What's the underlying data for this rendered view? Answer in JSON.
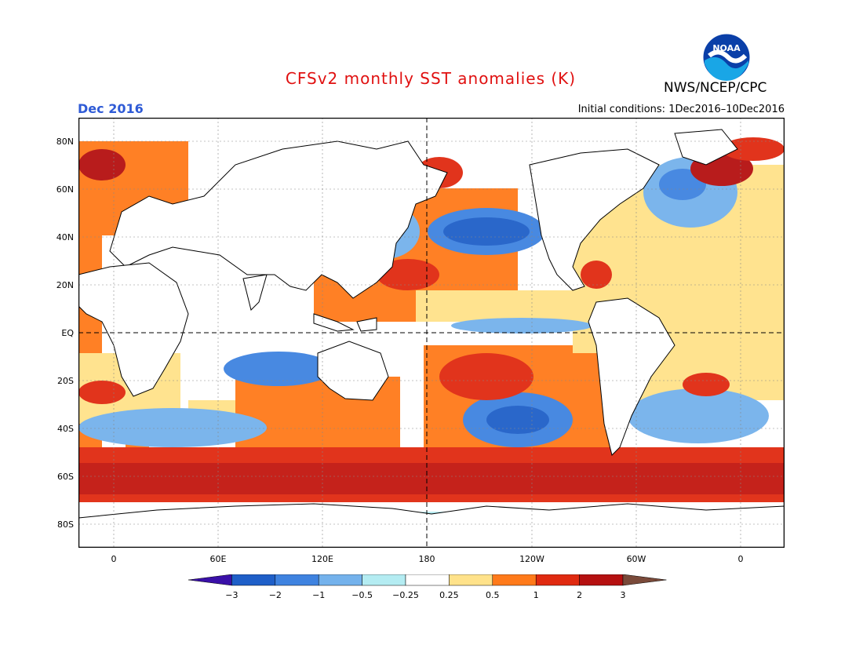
{
  "header": {
    "title": "CFSv2 monthly SST anomalies (K)",
    "agency": "NWS/NCEP/CPC",
    "logo_text": "NOAA",
    "date": "Dec 2016",
    "initial_conditions": "Initial conditions: 1Dec2016–10Dec2016"
  },
  "map": {
    "lat_labels": [
      "80N",
      "60N",
      "40N",
      "20N",
      "EQ",
      "20S",
      "40S",
      "60S",
      "80S"
    ],
    "lon_labels": [
      "0",
      "60E",
      "120E",
      "180",
      "120W",
      "60W",
      "0"
    ],
    "reference_lines": [
      "EQ",
      "180"
    ]
  },
  "legend": {
    "tick_labels": [
      "−3",
      "−2",
      "−1",
      "−0.5",
      "−0.25",
      "0.25",
      "0.5",
      "1",
      "2",
      "3"
    ],
    "colors": [
      "#3a10a8",
      "#1f5fc8",
      "#3f83e0",
      "#74b2ec",
      "#b4ecf2",
      "#ffffff",
      "#ffe28a",
      "#ff7a1a",
      "#e02a10",
      "#b51010",
      "#7a4a3a"
    ]
  },
  "colors": {
    "title": "#e01010",
    "date": "#2f5bd6",
    "land_outline": "#000000"
  }
}
